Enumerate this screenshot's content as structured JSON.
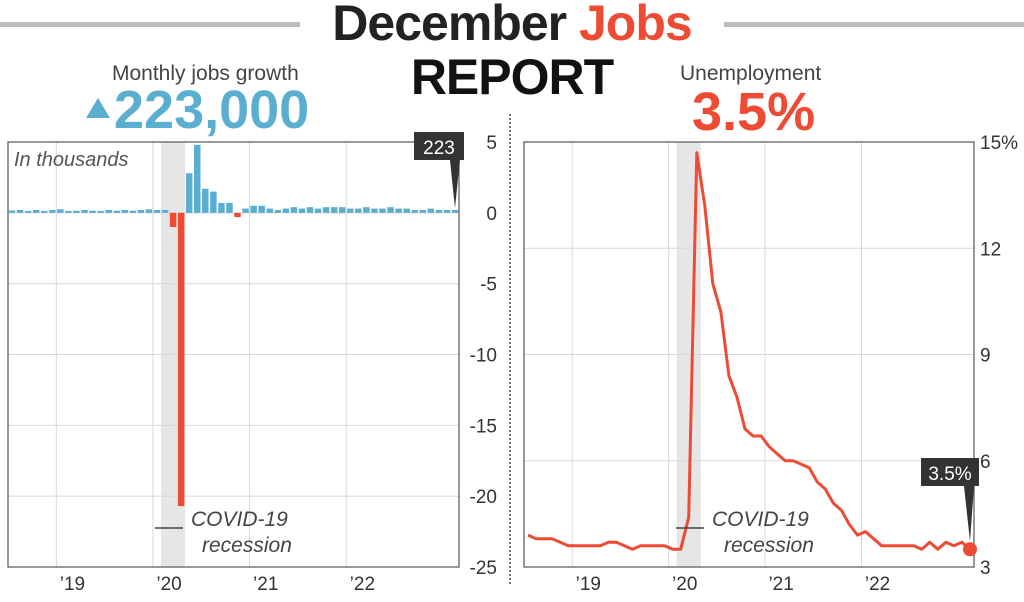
{
  "title": {
    "line1_a": "December",
    "line1_b": "Jobs",
    "line2": "REPORT"
  },
  "kpis": {
    "jobs_label": "Monthly jobs growth",
    "jobs_value": "223,000",
    "unemp_label": "Unemployment",
    "unemp_value": "3.5%"
  },
  "colors": {
    "blue": "#5aaed0",
    "red": "#ee4b35",
    "shade": "#e6e6e6",
    "grid": "#d8d8d8",
    "callout": "#333333"
  },
  "chart_data": [
    {
      "type": "bar",
      "name": "jobs",
      "subtitle": "In thousands",
      "x_start": "2018-07",
      "x_ticks": [
        "’19",
        "’20",
        "’21",
        "’22"
      ],
      "y_ticks": [
        "5",
        "0",
        "-5",
        "-10",
        "-15",
        "-20",
        "-25"
      ],
      "ylim": [
        -25,
        5
      ],
      "y_unit": "millions",
      "recession": {
        "start": "2020-02",
        "end": "2020-04",
        "label_line1": "COVID-19",
        "label_line2": "recession"
      },
      "values": [
        0.17,
        0.2,
        0.1,
        0.2,
        0.1,
        0.2,
        0.25,
        0.05,
        0.15,
        0.2,
        0.15,
        0.1,
        0.2,
        0.15,
        0.2,
        0.15,
        0.2,
        0.25,
        0.2,
        0.2,
        -1.0,
        -20.7,
        2.8,
        4.8,
        1.7,
        1.5,
        0.7,
        0.7,
        -0.3,
        0.3,
        0.5,
        0.5,
        0.3,
        0.2,
        0.3,
        0.4,
        0.3,
        0.4,
        0.3,
        0.4,
        0.4,
        0.4,
        0.3,
        0.3,
        0.4,
        0.3,
        0.3,
        0.4,
        0.3,
        0.3,
        0.2,
        0.2,
        0.3,
        0.2,
        0.2,
        0.2
      ],
      "callout": "223"
    },
    {
      "type": "line",
      "name": "unemployment",
      "x_start": "2018-07",
      "x_ticks": [
        "’19",
        "’20",
        "’21",
        "’22"
      ],
      "y_ticks": [
        "15%",
        "12",
        "9",
        "6",
        "3"
      ],
      "ylim": [
        3,
        15
      ],
      "recession": {
        "start": "2020-02",
        "end": "2020-04",
        "label_line1": "COVID-19",
        "label_line2": "recession"
      },
      "values": [
        3.9,
        3.8,
        3.8,
        3.8,
        3.7,
        3.6,
        3.6,
        3.6,
        3.6,
        3.6,
        3.7,
        3.7,
        3.6,
        3.5,
        3.6,
        3.6,
        3.6,
        3.6,
        3.5,
        3.5,
        4.4,
        14.7,
        13.2,
        11.0,
        10.2,
        8.4,
        7.8,
        6.9,
        6.7,
        6.7,
        6.4,
        6.2,
        6.0,
        6.0,
        5.9,
        5.8,
        5.4,
        5.2,
        4.8,
        4.6,
        4.2,
        3.9,
        4.0,
        3.8,
        3.6,
        3.6,
        3.6,
        3.6,
        3.6,
        3.5,
        3.7,
        3.5,
        3.7,
        3.6,
        3.7,
        3.5
      ],
      "callout": "3.5%"
    }
  ]
}
